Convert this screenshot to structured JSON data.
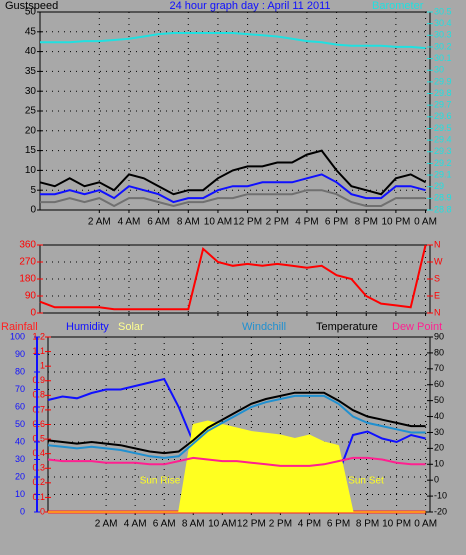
{
  "chart_data": [
    {
      "type": "line",
      "title": "24 hour graph day : April 11 2011",
      "x": [
        -2,
        -1,
        0,
        1,
        2,
        3,
        4,
        5,
        6,
        7,
        8,
        9,
        10,
        11,
        12,
        13,
        14,
        15,
        16,
        17,
        18,
        19,
        20,
        21,
        22,
        23,
        24
      ],
      "xlim": [
        -2,
        24.3
      ],
      "xticks": [
        {
          "value": 2,
          "label": "2 AM"
        },
        {
          "value": 4,
          "label": "4 AM"
        },
        {
          "value": 6,
          "label": "6 AM"
        },
        {
          "value": 8,
          "label": "8 AM"
        },
        {
          "value": 10,
          "label": "10 AM"
        },
        {
          "value": 12,
          "label": "12 PM"
        },
        {
          "value": 14,
          "label": "2 PM"
        },
        {
          "value": 16,
          "label": "4 PM"
        },
        {
          "value": 18,
          "label": "6 PM"
        },
        {
          "value": 20,
          "label": "8 PM"
        },
        {
          "value": 22,
          "label": "10 PM"
        },
        {
          "value": 24,
          "label": "0 AM"
        }
      ],
      "ylim": [
        0,
        50
      ],
      "yticks": [
        0,
        5,
        10,
        15,
        20,
        25,
        30,
        35,
        40,
        45,
        50
      ],
      "ycolor": "#000000",
      "y2lim": [
        28.8,
        30.5
      ],
      "y2ticks": [
        28.8,
        28.9,
        29,
        29.1,
        29.2,
        29.3,
        29.4,
        29.5,
        29.6,
        29.7,
        29.8,
        29.9,
        30,
        30.1,
        30.2,
        30.3,
        30.4,
        30.5
      ],
      "y2color": "#20e0e0",
      "grid": true,
      "series": [
        {
          "color": "#707070",
          "values": [
            2,
            2,
            3,
            2,
            3,
            1,
            3,
            3,
            2,
            1,
            2,
            2,
            3,
            3,
            4,
            4,
            4,
            4,
            5,
            5,
            4,
            2,
            1,
            1,
            3,
            3,
            3
          ]
        },
        {
          "name": "Gustspeed",
          "color": "#000000",
          "values": [
            7,
            6,
            8,
            6,
            7,
            5,
            9,
            8,
            6,
            4,
            5,
            5,
            8,
            10,
            11,
            11,
            12,
            12,
            14,
            15,
            10,
            6,
            5,
            4,
            8,
            9,
            7
          ]
        },
        {
          "color": "#1010ff",
          "values": [
            4,
            4,
            5,
            4,
            5,
            3,
            6,
            5,
            4,
            2,
            3,
            3,
            5,
            6,
            6,
            7,
            7,
            7,
            8,
            9,
            7,
            4,
            3,
            3,
            6,
            6,
            5
          ]
        },
        {
          "name": "Barometer",
          "color": "#20e0e0",
          "axis": "y2",
          "values": [
            30.24,
            30.24,
            30.24,
            30.25,
            30.25,
            30.26,
            30.27,
            30.29,
            30.31,
            30.32,
            30.32,
            30.32,
            30.32,
            30.32,
            30.31,
            30.3,
            30.29,
            30.27,
            30.25,
            30.24,
            30.22,
            30.21,
            30.21,
            30.21,
            30.2,
            30.2,
            30.19
          ]
        }
      ]
    },
    {
      "type": "line",
      "x": [
        -2,
        -1,
        0,
        1,
        2,
        3,
        4,
        5,
        6,
        7,
        8,
        9,
        10,
        11,
        12,
        13,
        14,
        15,
        16,
        17,
        18,
        19,
        20,
        21,
        22,
        23,
        24
      ],
      "xlim": [
        -2,
        24.3
      ],
      "xticks": [
        2,
        4,
        6,
        8,
        10,
        12,
        14,
        16,
        18,
        20,
        22,
        24
      ],
      "ylim": [
        0,
        360
      ],
      "yticks": [
        0,
        90,
        180,
        270,
        360
      ],
      "ycolor": "#ff0000",
      "y2lim": [
        0,
        360
      ],
      "y2ticks": [
        {
          "value": 0,
          "label": "N"
        },
        {
          "value": 90,
          "label": "E"
        },
        {
          "value": 180,
          "label": "S"
        },
        {
          "value": 270,
          "label": "W"
        },
        {
          "value": 360,
          "label": "N"
        }
      ],
      "y2color": "#ff0000",
      "grid": true,
      "series": [
        {
          "color": "#ff0000",
          "values": [
            60,
            30,
            30,
            30,
            30,
            20,
            20,
            20,
            20,
            20,
            20,
            340,
            270,
            250,
            260,
            250,
            260,
            250,
            240,
            250,
            200,
            180,
            90,
            50,
            40,
            30,
            360
          ]
        }
      ]
    },
    {
      "type": "line",
      "x": [
        -2,
        -1,
        0,
        1,
        2,
        3,
        4,
        5,
        6,
        7,
        8,
        9,
        10,
        11,
        12,
        13,
        14,
        15,
        16,
        17,
        18,
        19,
        20,
        21,
        22,
        23,
        24
      ],
      "xlim": [
        -2,
        24.3
      ],
      "xticks": [
        {
          "value": 2,
          "label": "2 AM"
        },
        {
          "value": 4,
          "label": "4 AM"
        },
        {
          "value": 6,
          "label": "6 AM"
        },
        {
          "value": 8,
          "label": "8 AM"
        },
        {
          "value": 10,
          "label": "10 AM"
        },
        {
          "value": 12,
          "label": "12 PM"
        },
        {
          "value": 14,
          "label": "2 PM"
        },
        {
          "value": 16,
          "label": "4 PM"
        },
        {
          "value": 18,
          "label": "6 PM"
        },
        {
          "value": 20,
          "label": "8 PM"
        },
        {
          "value": 22,
          "label": "10 PM"
        },
        {
          "value": 24,
          "label": "0 AM"
        }
      ],
      "ylim": [
        0,
        100
      ],
      "yticks": [
        0,
        10,
        20,
        30,
        40,
        50,
        60,
        70,
        80,
        90,
        100
      ],
      "ycolor": "#1010ff",
      "y2lim": [
        -20,
        90
      ],
      "y2ticks": [
        -20,
        -10,
        0,
        10,
        20,
        30,
        40,
        50,
        60,
        70,
        80,
        90
      ],
      "y2color": "#000000",
      "y3lim": [
        0,
        1.2
      ],
      "y3ticks": [
        0,
        0.1,
        0.2,
        0.3,
        0.4,
        0.5,
        0.6,
        0.7,
        0.8,
        0.9,
        1,
        1.1,
        1.2
      ],
      "y3color": "#ff0000",
      "grid": true,
      "annotations": [
        "Sun Rise",
        "Sun Set"
      ],
      "series": [
        {
          "name": "Rainfall",
          "color": "#ff2020",
          "axis": "y3",
          "values": [
            0,
            0,
            0,
            0,
            0,
            0,
            0,
            0,
            0,
            0,
            0,
            0,
            0,
            0,
            0,
            0,
            0,
            0,
            0,
            0,
            0,
            0,
            0,
            0,
            0,
            0,
            0
          ]
        },
        {
          "name": "Humidity",
          "color": "#1010ff",
          "values": [
            64,
            66,
            65,
            68,
            70,
            70,
            72,
            74,
            76,
            60,
            40,
            36,
            34,
            32,
            30,
            28,
            26,
            24,
            22,
            20,
            22,
            44,
            46,
            42,
            40,
            44,
            42
          ]
        },
        {
          "name": "Solar",
          "color": "#ffff20",
          "area": true,
          "values": [
            0,
            0,
            0,
            0,
            0,
            0,
            0,
            0,
            0,
            0,
            50,
            52,
            50,
            48,
            46,
            45,
            44,
            42,
            44,
            40,
            38,
            0,
            0,
            0,
            0,
            0,
            0
          ]
        },
        {
          "name": "Windchill",
          "color": "#2090d0",
          "axis": "y2",
          "values": [
            22,
            21,
            20,
            21,
            20,
            19,
            17,
            15,
            14,
            15,
            23,
            31,
            36,
            41,
            46,
            49,
            51,
            53,
            53,
            53,
            48,
            40,
            36,
            34,
            32,
            30,
            30
          ]
        },
        {
          "name": "Temperature",
          "color": "#000000",
          "axis": "y2",
          "values": [
            25,
            24,
            23,
            24,
            23,
            22,
            20,
            18,
            17,
            18,
            25,
            33,
            38,
            43,
            48,
            51,
            53,
            55,
            55,
            55,
            50,
            44,
            40,
            38,
            36,
            34,
            34
          ]
        },
        {
          "name": "Dew Point",
          "color": "#ff2090",
          "axis": "y2",
          "values": [
            13,
            12,
            12,
            12,
            11,
            11,
            11,
            10,
            10,
            12,
            14,
            13,
            12,
            12,
            11,
            10,
            9,
            9,
            9,
            10,
            12,
            14,
            14,
            13,
            11,
            10,
            10
          ]
        }
      ]
    }
  ]
}
